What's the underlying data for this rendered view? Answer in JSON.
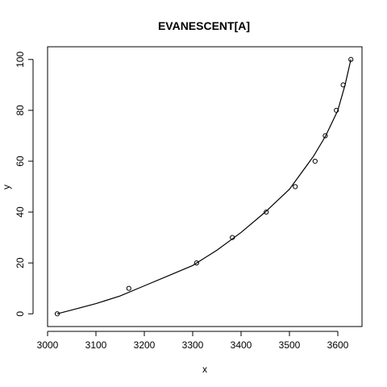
{
  "chart_data": {
    "type": "scatter",
    "title": "EVANESCENT[A]",
    "xlabel": "x",
    "ylabel": "y",
    "xlim": [
      3000,
      3650
    ],
    "ylim": [
      -5,
      105
    ],
    "x_ticks": [
      3000,
      3100,
      3200,
      3300,
      3400,
      3500,
      3600
    ],
    "y_ticks": [
      0,
      20,
      40,
      60,
      80,
      100
    ],
    "grid": false,
    "legend": "none",
    "series": [
      {
        "marker": "open-circle",
        "points": [
          {
            "x": 3020,
            "y": 0
          },
          {
            "x": 3168,
            "y": 10
          },
          {
            "x": 3308,
            "y": 20
          },
          {
            "x": 3382,
            "y": 30
          },
          {
            "x": 3452,
            "y": 40
          },
          {
            "x": 3512,
            "y": 50
          },
          {
            "x": 3553,
            "y": 60
          },
          {
            "x": 3574,
            "y": 70
          },
          {
            "x": 3597,
            "y": 80
          },
          {
            "x": 3611,
            "y": 90
          },
          {
            "x": 3627,
            "y": 100
          }
        ]
      },
      {
        "marker": "line",
        "points": [
          {
            "x": 3020,
            "y": 0
          },
          {
            "x": 3060,
            "y": 2
          },
          {
            "x": 3100,
            "y": 4
          },
          {
            "x": 3150,
            "y": 7
          },
          {
            "x": 3200,
            "y": 11
          },
          {
            "x": 3250,
            "y": 15
          },
          {
            "x": 3300,
            "y": 19
          },
          {
            "x": 3350,
            "y": 25
          },
          {
            "x": 3400,
            "y": 32
          },
          {
            "x": 3450,
            "y": 40
          },
          {
            "x": 3500,
            "y": 49
          },
          {
            "x": 3550,
            "y": 62
          },
          {
            "x": 3575,
            "y": 70
          },
          {
            "x": 3600,
            "y": 80
          },
          {
            "x": 3615,
            "y": 90
          },
          {
            "x": 3627,
            "y": 100
          }
        ]
      }
    ]
  }
}
